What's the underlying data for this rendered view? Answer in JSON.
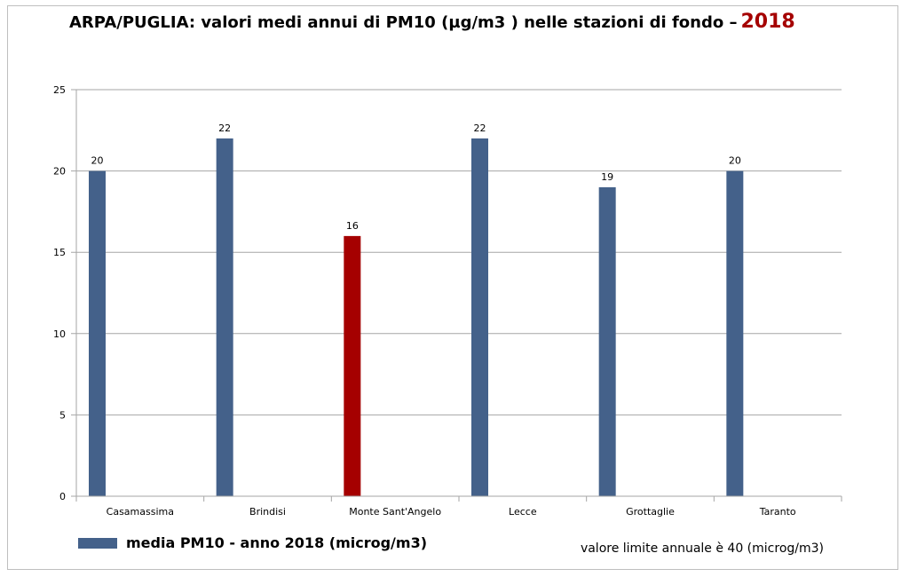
{
  "header": {
    "title": "ARPA/PUGLIA: valori medi annui di PM10 (µg/m3 ) nelle stazioni di fondo –",
    "year": "2018"
  },
  "legend": {
    "label": "media PM10 - anno 2018 (microg/m3)"
  },
  "note": "valore limite annuale è 40 (microg/m3)",
  "colors": {
    "series": "#44618a",
    "highlight": "#a50000",
    "year": "#a50000",
    "grid": "#a6a6a6"
  },
  "chart_data": {
    "type": "bar",
    "title": "",
    "xlabel": "",
    "ylabel": "",
    "categories": [
      "Casamassima",
      "Brindisi",
      "Monte Sant'Angelo",
      "Lecce",
      "Grottaglie",
      "Taranto"
    ],
    "series": [
      {
        "name": "media PM10 - anno 2018 (microg/m3)",
        "values": [
          20,
          22,
          16,
          22,
          19,
          20
        ]
      }
    ],
    "highlight_index": 2,
    "ylim": [
      0,
      25
    ],
    "yticks": [
      0,
      5,
      10,
      15,
      20,
      25
    ],
    "grid": true,
    "data_labels": true,
    "legend_position": "bottom-left"
  }
}
